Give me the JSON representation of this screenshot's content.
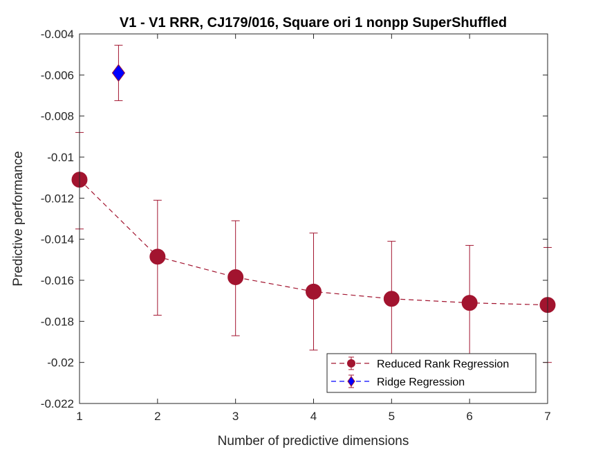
{
  "chart_data": {
    "type": "line",
    "title": "V1 - V1 RRR, CJ179/016, Square ori 1 nonpp SuperShuffled",
    "xlabel": "Number of predictive dimensions",
    "ylabel": "Predictive performance",
    "xlim": [
      1,
      7
    ],
    "ylim": [
      -0.022,
      -0.004
    ],
    "xticks": [
      1,
      2,
      3,
      4,
      5,
      6,
      7
    ],
    "xtick_labels": [
      "1",
      "2",
      "3",
      "4",
      "5",
      "6",
      "7"
    ],
    "yticks": [
      -0.022,
      -0.02,
      -0.018,
      -0.016,
      -0.014,
      -0.012,
      -0.01,
      -0.008,
      -0.006,
      -0.004
    ],
    "ytick_labels": [
      "-0.022",
      "-0.02",
      "-0.018",
      "-0.016",
      "-0.014",
      "-0.012",
      "-0.01",
      "-0.008",
      "-0.006",
      "-0.004"
    ],
    "grid": false,
    "legend_position": "bottom-right",
    "series": [
      {
        "name": "Reduced Rank Regression",
        "color": "#A2142F",
        "marker": "circle",
        "line": "dashed",
        "x": [
          1,
          2,
          3,
          4,
          5,
          6,
          7
        ],
        "y": [
          -0.0111,
          -0.01485,
          -0.01585,
          -0.01655,
          -0.0169,
          -0.0171,
          -0.0172
        ],
        "err_low": [
          -0.0135,
          -0.0177,
          -0.0187,
          -0.0194,
          -0.0197,
          -0.0199,
          -0.02
        ],
        "err_high": [
          -0.0088,
          -0.0121,
          -0.0131,
          -0.0137,
          -0.0141,
          -0.0143,
          -0.0144
        ]
      },
      {
        "name": "Ridge Regression",
        "color": "#0000FF",
        "error_color": "#A2142F",
        "marker": "diamond",
        "line": "dashed",
        "x": [
          1.5
        ],
        "y": [
          -0.0059
        ],
        "err_low": [
          -0.00725
        ],
        "err_high": [
          -0.00455
        ]
      }
    ]
  }
}
